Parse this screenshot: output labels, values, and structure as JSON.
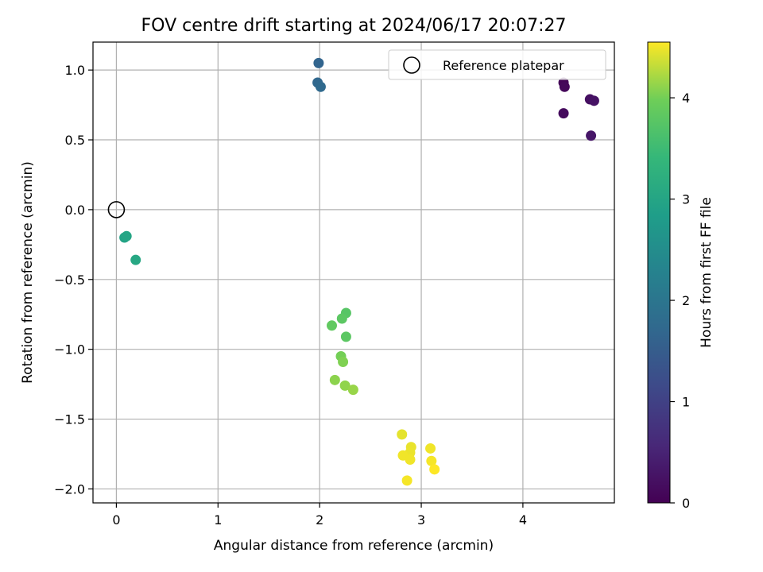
{
  "chart_data": {
    "type": "scatter",
    "title": "FOV centre drift starting at 2024/06/17 20:07:27",
    "xlabel": "Angular distance from reference (arcmin)",
    "ylabel": "Rotation from reference (arcmin)",
    "xlim": [
      -0.23,
      4.9
    ],
    "ylim": [
      -2.1,
      1.2
    ],
    "x_ticks": [
      0,
      1,
      2,
      3,
      4
    ],
    "x_tick_labels": [
      "0",
      "1",
      "2",
      "3",
      "4"
    ],
    "y_ticks": [
      1.0,
      0.5,
      0.0,
      -0.5,
      -1.0,
      -1.5,
      -2.0
    ],
    "y_tick_labels": [
      "1.0",
      "0.5",
      "0.0",
      "−0.5",
      "−1.0",
      "−1.5",
      "−2.0"
    ],
    "grid": true,
    "colormap": "viridis",
    "colorbar": {
      "label": "Hours from first FF file",
      "range": [
        0,
        4.55
      ],
      "ticks": [
        0,
        1,
        2,
        3,
        4
      ],
      "tick_labels": [
        "0",
        "1",
        "2",
        "3",
        "4"
      ]
    },
    "reference": {
      "label": "Reference platepar",
      "x": 0.0,
      "y": 0.0
    },
    "legend": {
      "placement": "top-right",
      "entries": [
        "Reference platepar"
      ]
    },
    "points": [
      {
        "x": 4.4,
        "y": 0.91,
        "t": 0.05
      },
      {
        "x": 4.41,
        "y": 0.88,
        "t": 0.1
      },
      {
        "x": 4.4,
        "y": 0.69,
        "t": 0.15
      },
      {
        "x": 4.66,
        "y": 0.79,
        "t": 0.2
      },
      {
        "x": 4.7,
        "y": 0.78,
        "t": 0.25
      },
      {
        "x": 4.67,
        "y": 0.53,
        "t": 0.3
      },
      {
        "x": 1.99,
        "y": 1.05,
        "t": 1.65
      },
      {
        "x": 1.98,
        "y": 0.91,
        "t": 1.7
      },
      {
        "x": 2.01,
        "y": 0.88,
        "t": 1.75
      },
      {
        "x": 0.08,
        "y": -0.2,
        "t": 2.95
      },
      {
        "x": 0.1,
        "y": -0.19,
        "t": 3.0
      },
      {
        "x": 0.19,
        "y": -0.36,
        "t": 3.05
      },
      {
        "x": 2.26,
        "y": -0.74,
        "t": 3.75
      },
      {
        "x": 2.22,
        "y": -0.78,
        "t": 3.8
      },
      {
        "x": 2.12,
        "y": -0.83,
        "t": 3.85
      },
      {
        "x": 2.26,
        "y": -0.91,
        "t": 3.8
      },
      {
        "x": 2.21,
        "y": -1.05,
        "t": 4.0
      },
      {
        "x": 2.23,
        "y": -1.09,
        "t": 4.05
      },
      {
        "x": 2.15,
        "y": -1.22,
        "t": 4.1
      },
      {
        "x": 2.25,
        "y": -1.26,
        "t": 4.12
      },
      {
        "x": 2.33,
        "y": -1.29,
        "t": 4.15
      },
      {
        "x": 2.81,
        "y": -1.61,
        "t": 4.45
      },
      {
        "x": 2.9,
        "y": -1.7,
        "t": 4.47
      },
      {
        "x": 2.89,
        "y": -1.74,
        "t": 4.48
      },
      {
        "x": 2.82,
        "y": -1.76,
        "t": 4.5
      },
      {
        "x": 2.89,
        "y": -1.79,
        "t": 4.5
      },
      {
        "x": 2.86,
        "y": -1.94,
        "t": 4.52
      },
      {
        "x": 3.09,
        "y": -1.71,
        "t": 4.5
      },
      {
        "x": 3.1,
        "y": -1.8,
        "t": 4.52
      },
      {
        "x": 3.13,
        "y": -1.86,
        "t": 4.55
      }
    ]
  }
}
